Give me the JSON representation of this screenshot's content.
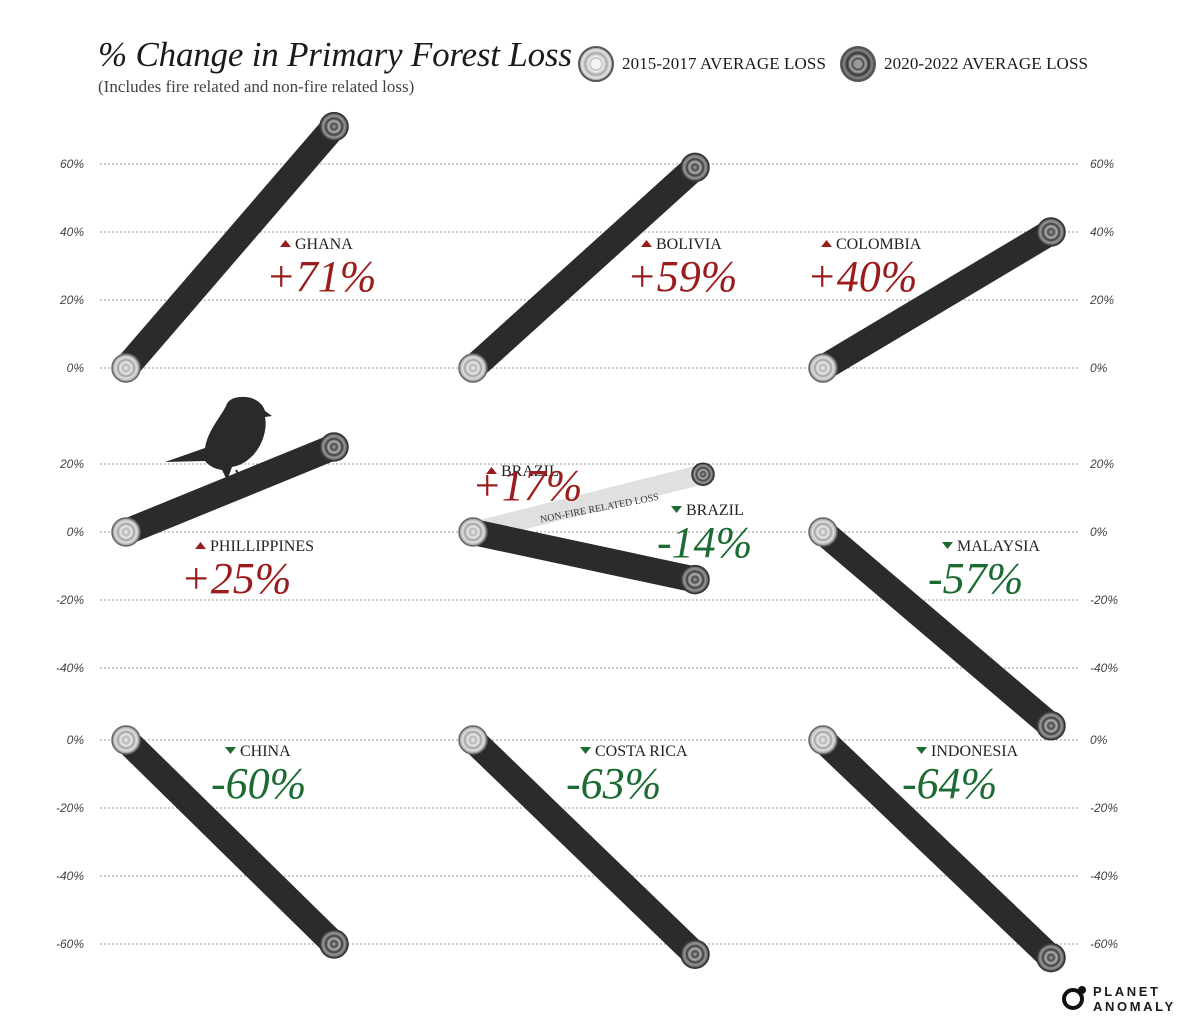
{
  "header": {
    "title": "% Change in Primary Forest Loss",
    "subtitle": "(Includes fire related and non-fire related loss)"
  },
  "legend": {
    "start_label": "2015-2017 AVERAGE LOSS",
    "end_label": "2020-2022 AVERAGE LOSS"
  },
  "logo": {
    "line1": "PLANET",
    "line2": "ANOMALY"
  },
  "colors": {
    "increase": "#9b1c1c",
    "decrease": "#1b6b33",
    "log": "#2b2b2b",
    "secondary_log": "#e0e0e0",
    "grid": "#9a9a9a"
  },
  "chart_data": {
    "type": "slope",
    "title": "% Change in Primary Forest Loss",
    "subtitle": "(Includes fire related and non-fire related loss)",
    "x": [
      "2015-2017 AVERAGE LOSS",
      "2020-2022 AVERAGE LOSS"
    ],
    "rows": [
      {
        "ticks": [
          "60%",
          "40%",
          "20%",
          "0%"
        ],
        "ylim": [
          0,
          60
        ]
      },
      {
        "ticks": [
          "20%",
          "0%",
          "-20%",
          "-40%"
        ],
        "ylim": [
          -40,
          20
        ]
      },
      {
        "ticks": [
          "0%",
          "-20%",
          "-40%",
          "-60%"
        ],
        "ylim": [
          -60,
          0
        ]
      }
    ],
    "series": [
      {
        "name": "GHANA",
        "values": [
          0,
          71
        ],
        "label": "+71%",
        "direction": "up"
      },
      {
        "name": "BOLIVIA",
        "values": [
          0,
          59
        ],
        "label": "+59%",
        "direction": "up"
      },
      {
        "name": "COLOMBIA",
        "values": [
          0,
          40
        ],
        "label": "+40%",
        "direction": "up"
      },
      {
        "name": "PHILLIPPINES",
        "values": [
          0,
          25
        ],
        "label": "+25%",
        "direction": "up"
      },
      {
        "name": "BRAZIL",
        "values": [
          0,
          -14
        ],
        "label": "-14%",
        "direction": "down",
        "secondary": {
          "name": "BRAZIL",
          "values": [
            0,
            17
          ],
          "label": "+17%",
          "direction": "up",
          "note": "NON-FIRE RELATED LOSS"
        }
      },
      {
        "name": "MALAYSIA",
        "values": [
          0,
          -57
        ],
        "label": "-57%",
        "direction": "down"
      },
      {
        "name": "CHINA",
        "values": [
          0,
          -60
        ],
        "label": "-60%",
        "direction": "down"
      },
      {
        "name": "COSTA RICA",
        "values": [
          0,
          -63
        ],
        "label": "-63%",
        "direction": "down"
      },
      {
        "name": "INDONESIA",
        "values": [
          0,
          -64
        ],
        "label": "-64%",
        "direction": "down"
      }
    ]
  }
}
